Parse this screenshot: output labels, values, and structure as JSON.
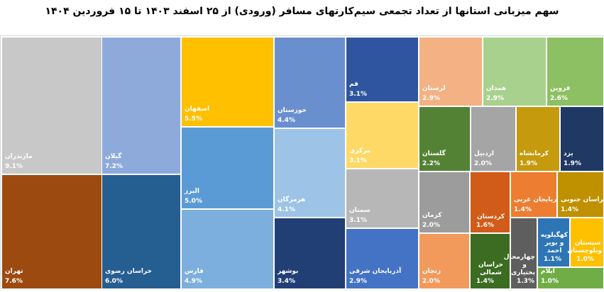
{
  "chart_data": {
    "type": "treemap",
    "title": "سهم میزبانی استانها از تعداد تجمعی سیم‌کارتهای مسافر (ورودی)  از ۲۵ اسفند ۱۴۰۳ تا ۱۵ فروردین ۱۴۰۴",
    "unit": "%",
    "items": [
      {
        "name": "مازندران",
        "value": "9.1%",
        "color": "#c8c8c8"
      },
      {
        "name": "تهران",
        "value": "7.6%",
        "color": "#9c4a10"
      },
      {
        "name": "گیلان",
        "value": "7.2%",
        "color": "#8eaadb"
      },
      {
        "name": "خراسان رضوی",
        "value": "6.0%",
        "color": "#255e91"
      },
      {
        "name": "اصفهان",
        "value": "5.5%",
        "color": "#ffc000"
      },
      {
        "name": "البرز",
        "value": "5.0%",
        "color": "#5b9bd5"
      },
      {
        "name": "فارس",
        "value": "4.9%",
        "color": "#7cafdd"
      },
      {
        "name": "خوزستان",
        "value": "4.4%",
        "color": "#6a8fce"
      },
      {
        "name": "هرمزگان",
        "value": "4.1%",
        "color": "#9dc3e6"
      },
      {
        "name": "بوشهر",
        "value": "3.4%",
        "color": "#223f75"
      },
      {
        "name": "قم",
        "value": "3.1%",
        "color": "#2f55a0"
      },
      {
        "name": "مرکزی",
        "value": "3.1%",
        "color": "#ffd966"
      },
      {
        "name": "سمنان",
        "value": "3.1%",
        "color": "#b7b7b7"
      },
      {
        "name": "آذربایجان شرقی",
        "value": "2.9%",
        "color": "#4472c4"
      },
      {
        "name": "لرستان",
        "value": "2.9%",
        "color": "#f4b183"
      },
      {
        "name": "همدان",
        "value": "2.9%",
        "color": "#a9d18e"
      },
      {
        "name": "قزوین",
        "value": "2.6%",
        "color": "#8cc063"
      },
      {
        "name": "گلستان",
        "value": "2.2%",
        "color": "#548235"
      },
      {
        "name": "اردبیل",
        "value": "2.0%",
        "color": "#a5a5a5"
      },
      {
        "name": "کرمانشاه",
        "value": "1.9%",
        "color": "#c59a0c"
      },
      {
        "name": "یزد",
        "value": "1.9%",
        "color": "#1f3864"
      },
      {
        "name": "کرمان",
        "value": "2.0%",
        "color": "#9c9c9c"
      },
      {
        "name": "کردستان",
        "value": "1.6%",
        "color": "#d15b18"
      },
      {
        "name": "آذربایجان غربی",
        "value": "1.4%",
        "color": "#ed7d31"
      },
      {
        "name": "خراسان جنوبی",
        "value": "1.4%",
        "color": "#bf9000"
      },
      {
        "name": "زنجان",
        "value": "2.0%",
        "color": "#f19a5c"
      },
      {
        "name": "خراسان شمالی",
        "value": "1.4%",
        "color": "#3c6b22"
      },
      {
        "name": "چهارمحال و بختیاری",
        "value": "1.3%",
        "color": "#5e5e5e"
      },
      {
        "name": "کهگیلویه و بویر احمد",
        "value": "1.1%",
        "color": "#2e75b6"
      },
      {
        "name": "سیستان وبلوچستان",
        "value": "1.0%",
        "color": "#ffc000"
      },
      {
        "name": "ایلام",
        "value": "1.0%",
        "color": "#70ad47"
      }
    ]
  }
}
